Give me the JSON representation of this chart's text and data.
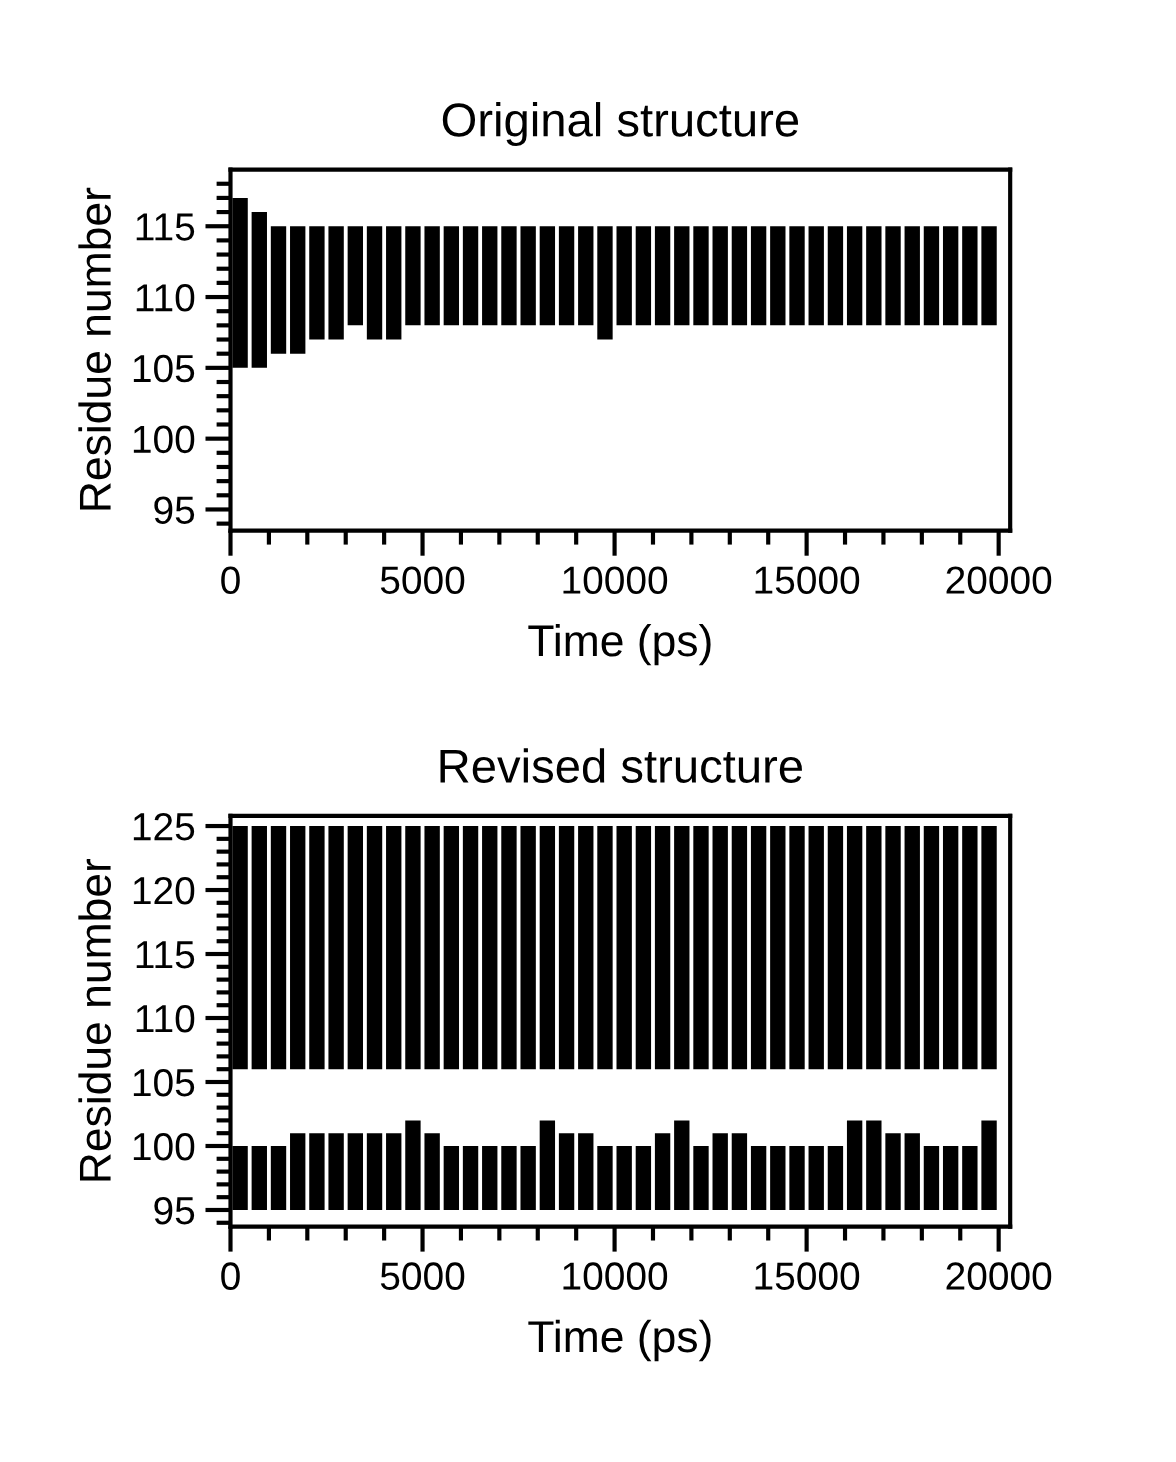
{
  "chart_data": [
    {
      "type": "bar",
      "title": "Original structure",
      "xlabel": "Time (ps)",
      "ylabel": "Residue number",
      "x": [
        250,
        750,
        1250,
        1750,
        2250,
        2750,
        3250,
        3750,
        4250,
        4750,
        5250,
        5750,
        6250,
        6750,
        7250,
        7750,
        8250,
        8750,
        9250,
        9750,
        10250,
        10750,
        11250,
        11750,
        12250,
        12750,
        13250,
        13750,
        14250,
        14750,
        15250,
        15750,
        16250,
        16750,
        17250,
        17750,
        18250,
        18750,
        19250,
        19750
      ],
      "series": [
        {
          "color": "#000000",
          "base": [
            105,
            105,
            106,
            106,
            107,
            107,
            108,
            107,
            107,
            108,
            108,
            108,
            108,
            108,
            108,
            108,
            108,
            108,
            108,
            107,
            108,
            108,
            108,
            108,
            108,
            108,
            108,
            108,
            108,
            108,
            108,
            108,
            108,
            108,
            108,
            108,
            108,
            108,
            108,
            108
          ],
          "values": [
            12,
            11,
            9,
            9,
            8,
            8,
            7,
            8,
            8,
            7,
            7,
            7,
            7,
            7,
            7,
            7,
            7,
            7,
            7,
            8,
            7,
            7,
            7,
            7,
            7,
            7,
            7,
            7,
            7,
            7,
            7,
            7,
            7,
            7,
            7,
            7,
            7,
            7,
            7,
            7
          ]
        }
      ],
      "xlim": [
        0,
        20300
      ],
      "ylim": [
        93.5,
        119
      ],
      "xticks": [
        0,
        {
          "value": 1000,
          "label": null
        },
        {
          "value": 2000,
          "label": null
        },
        {
          "value": 3000,
          "label": null
        },
        {
          "value": 4000,
          "label": null
        },
        5000,
        {
          "value": 6000,
          "label": null
        },
        {
          "value": 7000,
          "label": null
        },
        {
          "value": 8000,
          "label": null
        },
        {
          "value": 9000,
          "label": null
        },
        10000,
        {
          "value": 11000,
          "label": null
        },
        {
          "value": 12000,
          "label": null
        },
        {
          "value": 13000,
          "label": null
        },
        {
          "value": 14000,
          "label": null
        },
        15000,
        {
          "value": 16000,
          "label": null
        },
        {
          "value": 17000,
          "label": null
        },
        {
          "value": 18000,
          "label": null
        },
        {
          "value": 19000,
          "label": null
        },
        20000
      ],
      "yticks": [
        {
          "value": 94,
          "label": null
        },
        95,
        {
          "value": 96,
          "label": null
        },
        {
          "value": 97,
          "label": null
        },
        {
          "value": 98,
          "label": null
        },
        {
          "value": 99,
          "label": null
        },
        100,
        {
          "value": 101,
          "label": null
        },
        {
          "value": 102,
          "label": null
        },
        {
          "value": 103,
          "label": null
        },
        {
          "value": 104,
          "label": null
        },
        105,
        {
          "value": 106,
          "label": null
        },
        {
          "value": 107,
          "label": null
        },
        {
          "value": 108,
          "label": null
        },
        {
          "value": 109,
          "label": null
        },
        110,
        {
          "value": 111,
          "label": null
        },
        {
          "value": 112,
          "label": null
        },
        {
          "value": 113,
          "label": null
        },
        {
          "value": 114,
          "label": null
        },
        115,
        {
          "value": 116,
          "label": null
        },
        {
          "value": 117,
          "label": null
        },
        {
          "value": 118,
          "label": null
        }
      ],
      "grid": false,
      "legend": false
    },
    {
      "type": "bar",
      "title": "Revised structure",
      "xlabel": "Time (ps)",
      "ylabel": "Residue number",
      "x": [
        250,
        750,
        1250,
        1750,
        2250,
        2750,
        3250,
        3750,
        4250,
        4750,
        5250,
        5750,
        6250,
        6750,
        7250,
        7750,
        8250,
        8750,
        9250,
        9750,
        10250,
        10750,
        11250,
        11750,
        12250,
        12750,
        13250,
        13750,
        14250,
        14750,
        15250,
        15750,
        16250,
        16750,
        17250,
        17750,
        18250,
        18750,
        19250,
        19750
      ],
      "series": [
        {
          "color": "#000000",
          "base": [
            106,
            106,
            106,
            106,
            106,
            106,
            106,
            106,
            106,
            106,
            106,
            106,
            106,
            106,
            106,
            106,
            106,
            106,
            106,
            106,
            106,
            106,
            106,
            106,
            106,
            106,
            106,
            106,
            106,
            106,
            106,
            106,
            106,
            106,
            106,
            106,
            106,
            106,
            106,
            106
          ],
          "values": [
            19,
            19,
            19,
            19,
            19,
            19,
            19,
            19,
            19,
            19,
            19,
            19,
            19,
            19,
            19,
            19,
            19,
            19,
            19,
            19,
            19,
            19,
            19,
            19,
            19,
            19,
            19,
            19,
            19,
            19,
            19,
            19,
            19,
            19,
            19,
            19,
            19,
            19,
            19,
            19
          ]
        },
        {
          "color": "#000000",
          "base": [
            95,
            95,
            95,
            95,
            95,
            95,
            95,
            95,
            95,
            95,
            95,
            95,
            95,
            95,
            95,
            95,
            95,
            95,
            95,
            95,
            95,
            95,
            95,
            95,
            95,
            95,
            95,
            95,
            95,
            95,
            95,
            95,
            95,
            95,
            95,
            95,
            95,
            95,
            95,
            95
          ],
          "values": [
            5,
            5,
            5,
            6,
            6,
            6,
            6,
            6,
            6,
            7,
            6,
            5,
            5,
            5,
            5,
            5,
            7,
            6,
            6,
            5,
            5,
            5,
            6,
            7,
            5,
            6,
            6,
            5,
            5,
            5,
            5,
            5,
            7,
            7,
            6,
            6,
            5,
            5,
            5,
            7
          ]
        }
      ],
      "xlim": [
        0,
        20300
      ],
      "ylim": [
        93.7,
        125.8
      ],
      "xticks": [
        0,
        {
          "value": 1000,
          "label": null
        },
        {
          "value": 2000,
          "label": null
        },
        {
          "value": 3000,
          "label": null
        },
        {
          "value": 4000,
          "label": null
        },
        5000,
        {
          "value": 6000,
          "label": null
        },
        {
          "value": 7000,
          "label": null
        },
        {
          "value": 8000,
          "label": null
        },
        {
          "value": 9000,
          "label": null
        },
        10000,
        {
          "value": 11000,
          "label": null
        },
        {
          "value": 12000,
          "label": null
        },
        {
          "value": 13000,
          "label": null
        },
        {
          "value": 14000,
          "label": null
        },
        15000,
        {
          "value": 16000,
          "label": null
        },
        {
          "value": 17000,
          "label": null
        },
        {
          "value": 18000,
          "label": null
        },
        {
          "value": 19000,
          "label": null
        },
        20000
      ],
      "yticks": [
        {
          "value": 94,
          "label": null
        },
        95,
        {
          "value": 96,
          "label": null
        },
        {
          "value": 97,
          "label": null
        },
        {
          "value": 98,
          "label": null
        },
        {
          "value": 99,
          "label": null
        },
        100,
        {
          "value": 101,
          "label": null
        },
        {
          "value": 102,
          "label": null
        },
        {
          "value": 103,
          "label": null
        },
        {
          "value": 104,
          "label": null
        },
        105,
        {
          "value": 106,
          "label": null
        },
        {
          "value": 107,
          "label": null
        },
        {
          "value": 108,
          "label": null
        },
        {
          "value": 109,
          "label": null
        },
        110,
        {
          "value": 111,
          "label": null
        },
        {
          "value": 112,
          "label": null
        },
        {
          "value": 113,
          "label": null
        },
        {
          "value": 114,
          "label": null
        },
        115,
        {
          "value": 116,
          "label": null
        },
        {
          "value": 117,
          "label": null
        },
        {
          "value": 118,
          "label": null
        },
        {
          "value": 119,
          "label": null
        },
        120,
        {
          "value": 121,
          "label": null
        },
        {
          "value": 122,
          "label": null
        },
        {
          "value": 123,
          "label": null
        },
        {
          "value": 124,
          "label": null
        },
        125
      ],
      "grid": false,
      "legend": false
    }
  ]
}
